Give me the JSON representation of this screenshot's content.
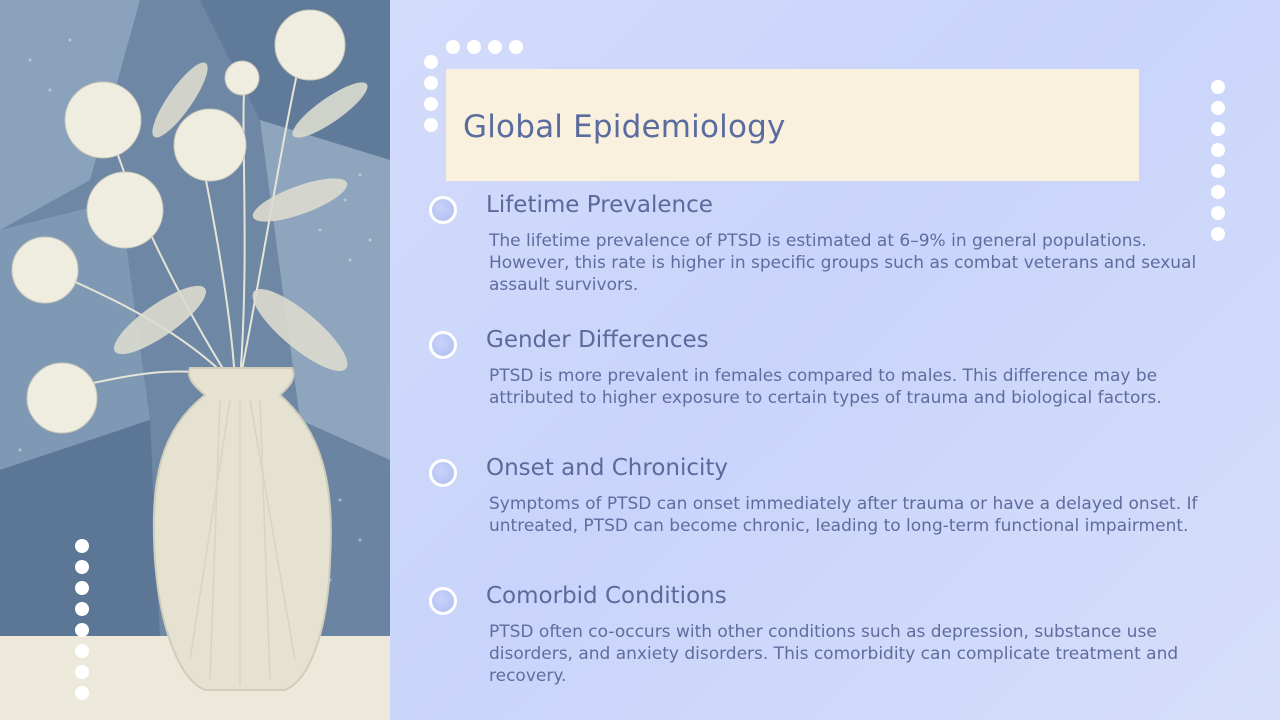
{
  "slide": {
    "title": "Global Epidemiology"
  },
  "illustration": {
    "icon": "flower-vase-illustration",
    "colors": {
      "background": "#6f89a6",
      "flowers": "#ece8da",
      "table": "#ede9da"
    }
  },
  "sections": [
    {
      "heading": "Lifetime Prevalence",
      "body": "The lifetime prevalence of PTSD is estimated at 6–9% in general populations. However, this rate is higher in specific groups such as combat veterans and sexual assault survivors."
    },
    {
      "heading": "Gender Differences",
      "body": "PTSD is more prevalent in females compared to males. This difference may be attributed to higher exposure to certain types of trauma and biological factors."
    },
    {
      "heading": "Onset and Chronicity",
      "body": "Symptoms of PTSD can onset immediately after trauma or have a delayed onset. If untreated, PTSD can become chronic, leading to long-term functional impairment."
    },
    {
      "heading": "Comorbid Conditions",
      "body": "PTSD often co-occurs with other conditions such as depression, substance use disorders, and anxiety disorders. This comorbidity can complicate treatment and recovery."
    }
  ],
  "theme": {
    "title_color": "#5a6ba0",
    "text_color": "#5e6d9e",
    "title_box_color": "#f9f1de",
    "accent_dot_color": "#ffffff"
  }
}
